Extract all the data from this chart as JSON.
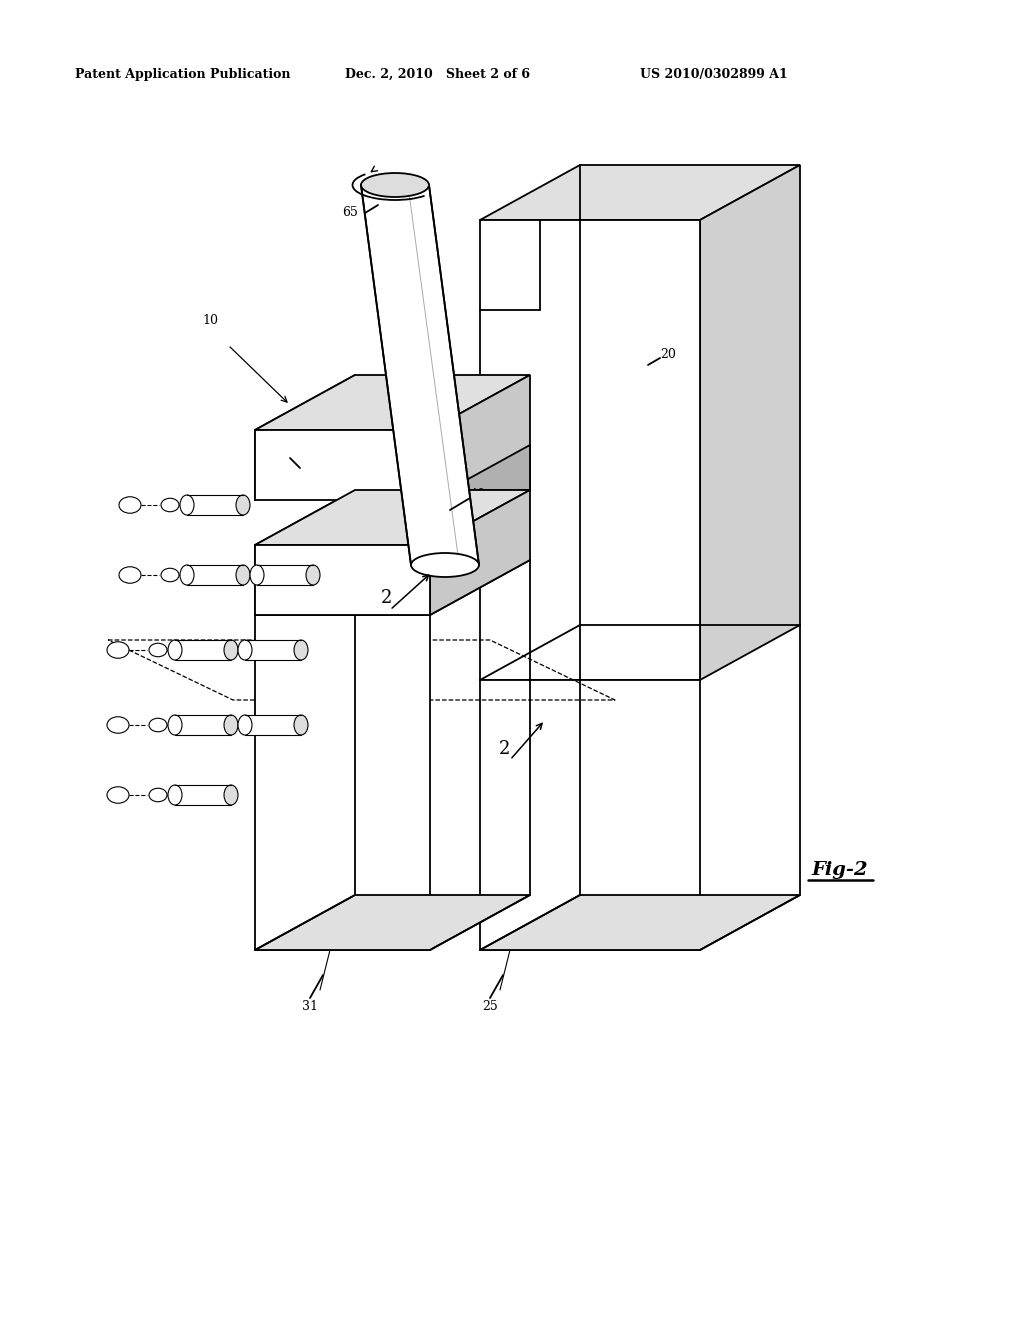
{
  "background_color": "#ffffff",
  "header_left": "Patent Application Publication",
  "header_mid": "Dec. 2, 2010   Sheet 2 of 6",
  "header_right": "US 2010/0302899 A1",
  "fig_label": "Fig-2",
  "line_color": "#000000",
  "lw_main": 1.3,
  "lw_thin": 0.8,
  "gray_face": "#e0e0e0",
  "white_face": "#ffffff"
}
